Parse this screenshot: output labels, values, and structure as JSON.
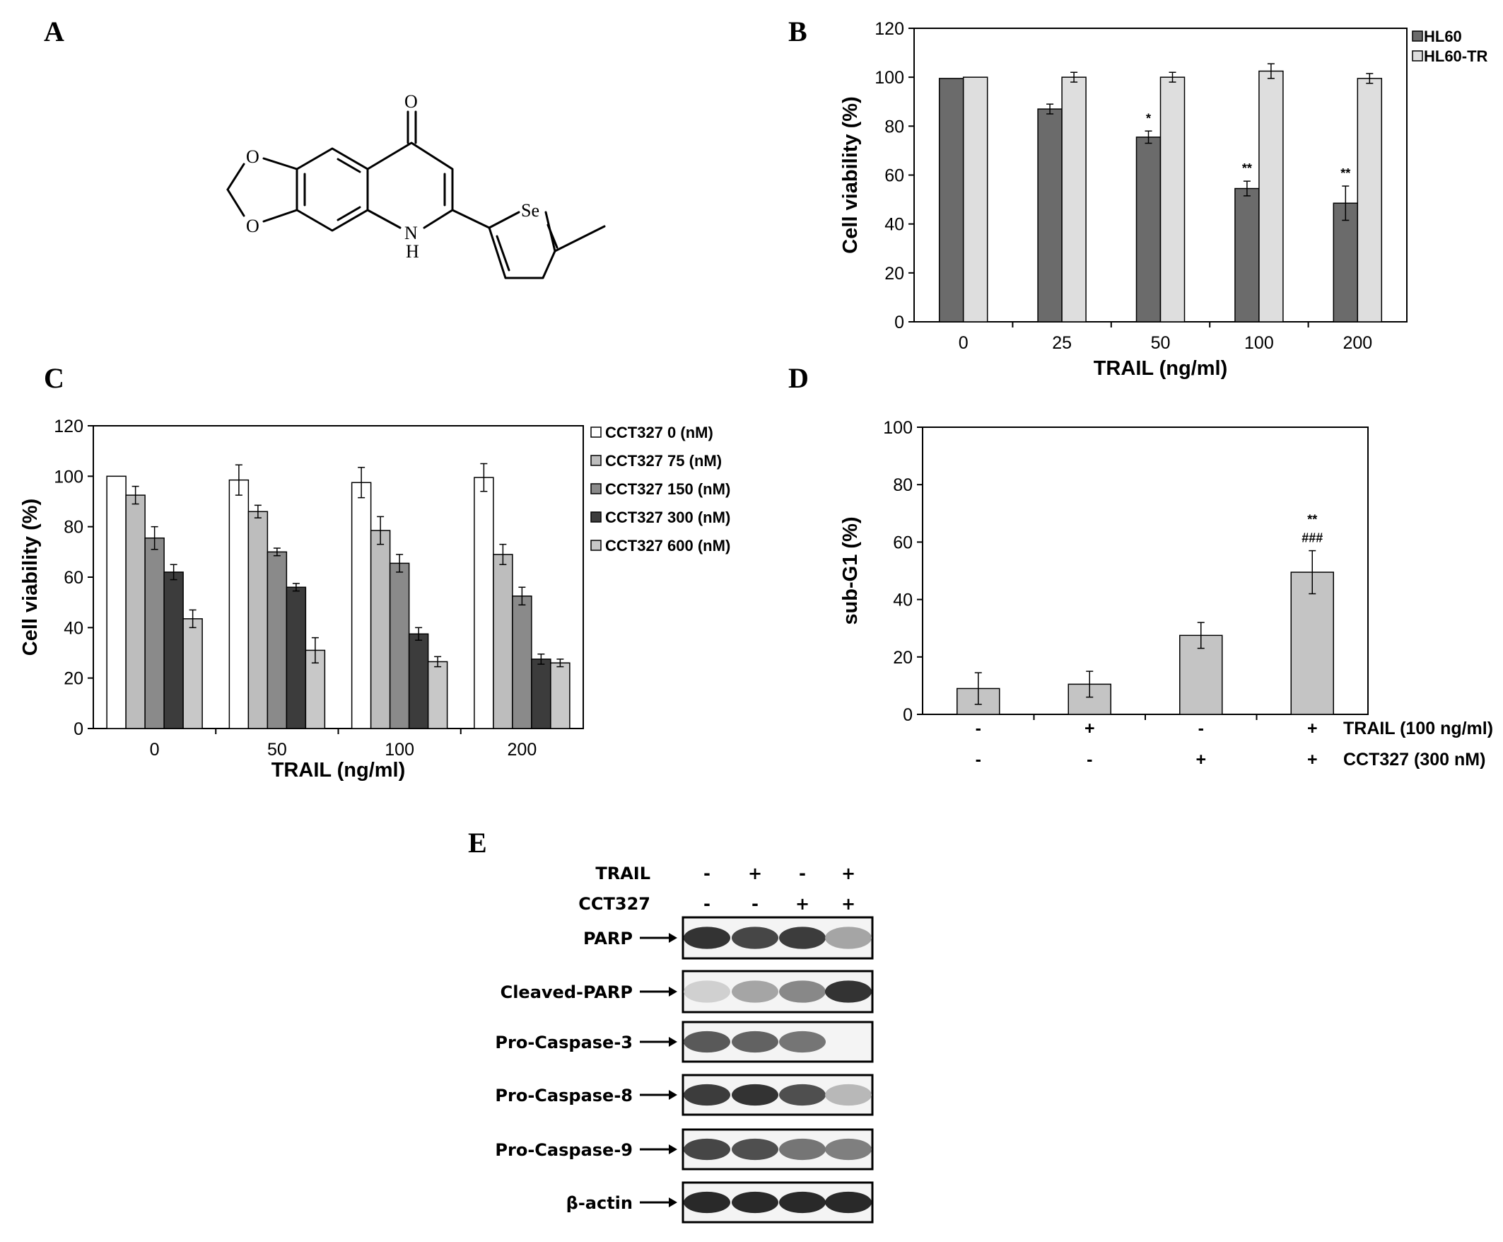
{
  "panels": {
    "A": "A",
    "B": "B",
    "C": "C",
    "D": "D",
    "E": "E"
  },
  "structure": {
    "atoms": {
      "O_top": "O",
      "O1": "O",
      "O2": "O",
      "N": "N",
      "H": "H",
      "Se": "Se"
    }
  },
  "colors": {
    "dark": "#6b6b6b",
    "light": "#dedede",
    "white": "#ffffff",
    "g75": "#bdbdbd",
    "g150": "#8a8a8a",
    "g300": "#3c3c3c",
    "g600": "#c8c8c8",
    "subg1": "#c4c4c4"
  },
  "chart_data": [
    {
      "id": "B",
      "type": "bar",
      "categories": [
        "0",
        "25",
        "50",
        "100",
        "200"
      ],
      "series": [
        {
          "name": "HL60",
          "values": [
            99.5,
            87,
            75.5,
            54.5,
            48.5
          ],
          "err": [
            0,
            2,
            2.5,
            3,
            7
          ],
          "color": "#6b6b6b"
        },
        {
          "name": "HL60-TR",
          "values": [
            100,
            100,
            100,
            102.5,
            99.5
          ],
          "err": [
            0,
            2,
            2,
            3,
            2
          ],
          "color": "#dedede"
        }
      ],
      "annotations": [
        {
          "category": "50",
          "series": "HL60",
          "text": "*"
        },
        {
          "category": "100",
          "series": "HL60",
          "text": "**"
        },
        {
          "category": "200",
          "series": "HL60",
          "text": "**"
        }
      ],
      "xlabel": "TRAIL (ng/ml)",
      "ylabel": "Cell viability (%)",
      "ylim": [
        0,
        120
      ],
      "yticks": [
        "0",
        "20",
        "40",
        "60",
        "80",
        "100",
        "120"
      ],
      "legend": "top-right outside"
    },
    {
      "id": "C",
      "type": "bar",
      "categories": [
        "0",
        "50",
        "100",
        "200"
      ],
      "series": [
        {
          "name": "CCT327 0 (nM)",
          "values": [
            100,
            98.5,
            97.5,
            99.5
          ],
          "err": [
            0,
            6,
            6,
            5.5
          ],
          "color": "#ffffff"
        },
        {
          "name": "CCT327 75 (nM)",
          "values": [
            92.5,
            86,
            78.5,
            69
          ],
          "err": [
            3.5,
            2.5,
            5.5,
            4
          ],
          "color": "#bdbdbd"
        },
        {
          "name": "CCT327 150 (nM)",
          "values": [
            75.5,
            70,
            65.5,
            52.5
          ],
          "err": [
            4.5,
            1.5,
            3.5,
            3.5
          ],
          "color": "#8a8a8a"
        },
        {
          "name": "CCT327 300 (nM)",
          "values": [
            62,
            56,
            37.5,
            27.5
          ],
          "err": [
            3,
            1.5,
            2.5,
            2
          ],
          "color": "#3c3c3c"
        },
        {
          "name": "CCT327 600 (nM)",
          "values": [
            43.5,
            31,
            26.5,
            26
          ],
          "err": [
            3.5,
            5,
            2,
            1.5
          ],
          "color": "#c8c8c8"
        }
      ],
      "xlabel": "TRAIL (ng/ml)",
      "ylabel": "Cell viability (%)",
      "ylim": [
        0,
        120
      ],
      "yticks": [
        "0",
        "20",
        "40",
        "60",
        "80",
        "100",
        "120"
      ],
      "legend": "right outside"
    },
    {
      "id": "D",
      "type": "bar",
      "categories": [
        "1",
        "2",
        "3",
        "4"
      ],
      "series": [
        {
          "name": "",
          "values": [
            9,
            10.5,
            27.5,
            49.5
          ],
          "err": [
            5.5,
            4.5,
            4.5,
            7.5
          ],
          "color": "#c4c4c4"
        }
      ],
      "annotations": [
        {
          "category": "4",
          "text": "**"
        },
        {
          "category": "4",
          "text": "###"
        }
      ],
      "row_labels": [
        "TRAIL (100 ng/ml)",
        "CCT327 (300 nM)"
      ],
      "trail_signs": [
        "-",
        "+",
        "-",
        "+"
      ],
      "cct_signs": [
        "-",
        "-",
        "+",
        "+"
      ],
      "ylabel": "sub-G1 (%)",
      "ylim": [
        0,
        100
      ],
      "yticks": [
        "0",
        "20",
        "40",
        "60",
        "80",
        "100"
      ]
    }
  ],
  "blot": {
    "header_rows": [
      {
        "label": "TRAIL",
        "signs": [
          "-",
          "+",
          "-",
          "+"
        ]
      },
      {
        "label": "CCT327",
        "signs": [
          "-",
          "-",
          "+",
          "+"
        ]
      }
    ],
    "rows": [
      {
        "label": "PARP",
        "intensity": [
          0.95,
          0.85,
          0.9,
          0.35
        ]
      },
      {
        "label": "Cleaved-PARP",
        "intensity": [
          0.12,
          0.35,
          0.5,
          0.95
        ]
      },
      {
        "label": "Pro-Caspase-3",
        "intensity": [
          0.75,
          0.7,
          0.6,
          0.0
        ]
      },
      {
        "label": "Pro-Caspase-8",
        "intensity": [
          0.9,
          0.95,
          0.8,
          0.25
        ]
      },
      {
        "label": "Pro-Caspase-9",
        "intensity": [
          0.85,
          0.8,
          0.6,
          0.55
        ]
      },
      {
        "label": "β-actin",
        "intensity": [
          1.0,
          1.0,
          1.0,
          1.0
        ]
      }
    ]
  }
}
